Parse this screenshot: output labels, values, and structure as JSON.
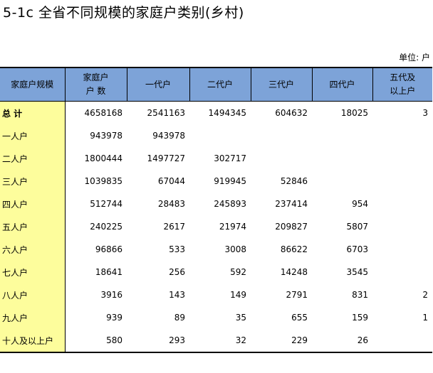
{
  "title": "5-1c  全省不同规模的家庭户类别(乡村)",
  "unit": "单位: 户",
  "table": {
    "headers": [
      "家庭户规模",
      "家庭户\n户  数",
      "一代户",
      "二代户",
      "三代户",
      "四代户",
      "五代及\n以上户"
    ],
    "rows": [
      [
        "总  计",
        "4658168",
        "2541163",
        "1494345",
        "604632",
        "18025",
        "3"
      ],
      [
        "一人户",
        "943978",
        "943978",
        "",
        "",
        "",
        ""
      ],
      [
        "二人户",
        "1800444",
        "1497727",
        "302717",
        "",
        "",
        ""
      ],
      [
        "三人户",
        "1039835",
        "67044",
        "919945",
        "52846",
        "",
        ""
      ],
      [
        "四人户",
        "512744",
        "28483",
        "245893",
        "237414",
        "954",
        ""
      ],
      [
        "五人户",
        "240225",
        "2617",
        "21974",
        "209827",
        "5807",
        ""
      ],
      [
        "六人户",
        "96866",
        "533",
        "3008",
        "86622",
        "6703",
        ""
      ],
      [
        "七人户",
        "18641",
        "256",
        "592",
        "14248",
        "3545",
        ""
      ],
      [
        "八人户",
        "3916",
        "143",
        "149",
        "2791",
        "831",
        "2"
      ],
      [
        "九人户",
        "939",
        "89",
        "35",
        "655",
        "159",
        "1"
      ],
      [
        "十人及以上户",
        "580",
        "293",
        "32",
        "229",
        "26",
        ""
      ]
    ]
  },
  "colors": {
    "header_bg": "#7da3d8",
    "label_bg": "#fdfd9c"
  }
}
